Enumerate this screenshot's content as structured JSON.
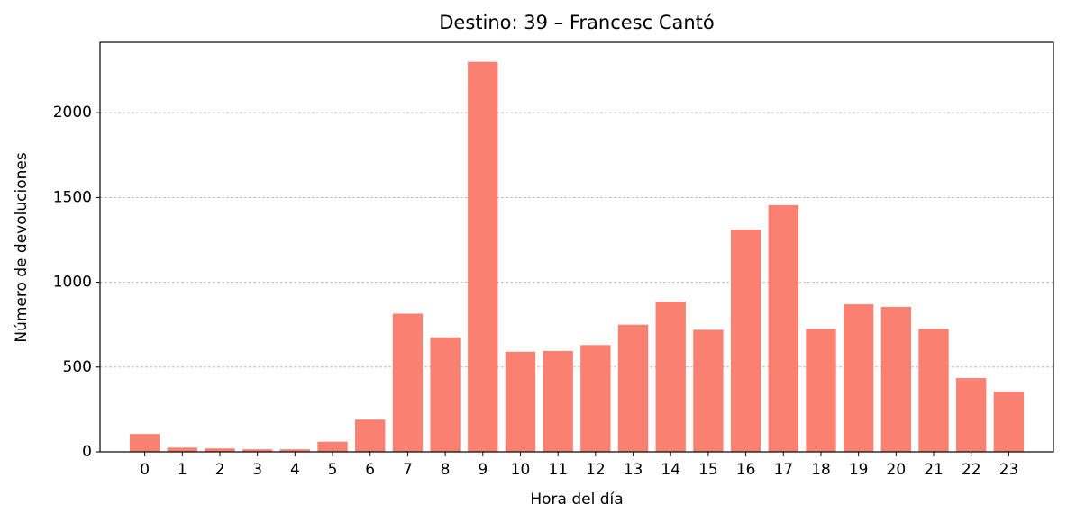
{
  "chart_data": {
    "type": "bar",
    "title": "Destino: 39 – Francesc Cantó",
    "x_label": "Hora del día",
    "y_label": "Número de devoluciones",
    "categories": [
      "0",
      "1",
      "2",
      "3",
      "4",
      "5",
      "6",
      "7",
      "8",
      "9",
      "10",
      "11",
      "12",
      "13",
      "14",
      "15",
      "16",
      "17",
      "18",
      "19",
      "20",
      "21",
      "22",
      "23"
    ],
    "values": [
      105,
      25,
      20,
      15,
      15,
      60,
      190,
      815,
      675,
      2300,
      590,
      595,
      630,
      750,
      885,
      720,
      1310,
      1455,
      725,
      870,
      855,
      725,
      435,
      355
    ],
    "color": "#fa8072",
    "ylim": [
      0,
      2415
    ],
    "yticks": [
      0,
      500,
      1000,
      1500,
      2000
    ],
    "grid": true
  }
}
